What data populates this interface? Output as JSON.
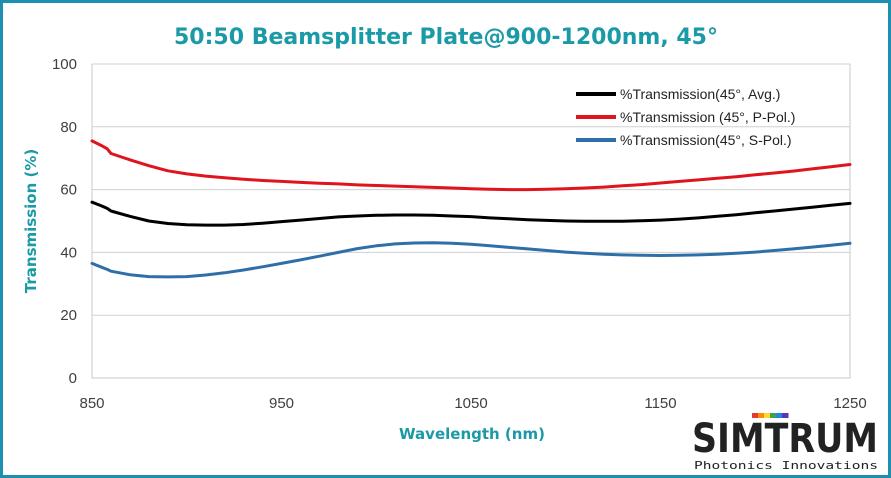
{
  "chart_data": {
    "type": "line",
    "title": "50:50 Beamsplitter Plate@900-1200nm, 45°",
    "xlabel": "Wavelength (nm)",
    "ylabel": "Transmission (%)",
    "xlim": [
      850,
      1250
    ],
    "ylim": [
      0,
      100
    ],
    "xticks": [
      850,
      950,
      1050,
      1150,
      1250
    ],
    "yticks": [
      0,
      20,
      40,
      60,
      80,
      100
    ],
    "grid": "horizontal",
    "legend_position": "top-right",
    "x": [
      850,
      855,
      858,
      860,
      870,
      880,
      890,
      900,
      910,
      920,
      930,
      940,
      950,
      960,
      970,
      980,
      990,
      1000,
      1010,
      1020,
      1030,
      1040,
      1050,
      1060,
      1070,
      1080,
      1090,
      1100,
      1110,
      1120,
      1130,
      1140,
      1150,
      1160,
      1170,
      1180,
      1190,
      1200,
      1210,
      1220,
      1230,
      1240,
      1250
    ],
    "series": [
      {
        "name": "%Transmission(45°, Avg.)",
        "color": "#000000",
        "values": [
          56.0,
          54.8,
          54.0,
          53.2,
          51.5,
          50.0,
          49.2,
          48.8,
          48.7,
          48.7,
          48.9,
          49.3,
          49.8,
          50.3,
          50.8,
          51.3,
          51.6,
          51.8,
          51.9,
          51.9,
          51.8,
          51.6,
          51.4,
          51.0,
          50.7,
          50.4,
          50.2,
          50.0,
          49.9,
          49.9,
          49.9,
          50.1,
          50.3,
          50.6,
          51.0,
          51.5,
          52.0,
          52.6,
          53.2,
          53.8,
          54.4,
          55.0,
          55.6
        ]
      },
      {
        "name": "%Transmission (45°, P-Pol.)",
        "color": "#e0141c",
        "values": [
          75.5,
          74.0,
          73.0,
          71.5,
          69.5,
          67.6,
          66.0,
          65.0,
          64.3,
          63.8,
          63.3,
          62.9,
          62.6,
          62.3,
          62.0,
          61.8,
          61.5,
          61.3,
          61.1,
          60.9,
          60.7,
          60.5,
          60.3,
          60.1,
          60.0,
          60.0,
          60.1,
          60.3,
          60.5,
          60.8,
          61.2,
          61.6,
          62.1,
          62.6,
          63.1,
          63.6,
          64.1,
          64.7,
          65.3,
          65.9,
          66.6,
          67.3,
          68.0
        ]
      },
      {
        "name": "%Transmission(45°, S-Pol.)",
        "color": "#2f6fa8",
        "values": [
          36.5,
          35.3,
          34.6,
          34.0,
          32.9,
          32.3,
          32.2,
          32.3,
          32.8,
          33.5,
          34.4,
          35.4,
          36.5,
          37.6,
          38.8,
          40.0,
          41.2,
          42.1,
          42.7,
          43.0,
          43.1,
          42.9,
          42.6,
          42.1,
          41.6,
          41.1,
          40.6,
          40.1,
          39.7,
          39.4,
          39.2,
          39.1,
          39.0,
          39.1,
          39.2,
          39.4,
          39.7,
          40.1,
          40.6,
          41.1,
          41.7,
          42.3,
          42.9
        ]
      }
    ]
  },
  "logo": {
    "brand": "SIMTRUM",
    "tagline": "Photonics Innovations",
    "colors": [
      "#e53935",
      "#fb8c00",
      "#fdd835",
      "#43a047",
      "#1e88e5",
      "#5e35b1"
    ]
  }
}
